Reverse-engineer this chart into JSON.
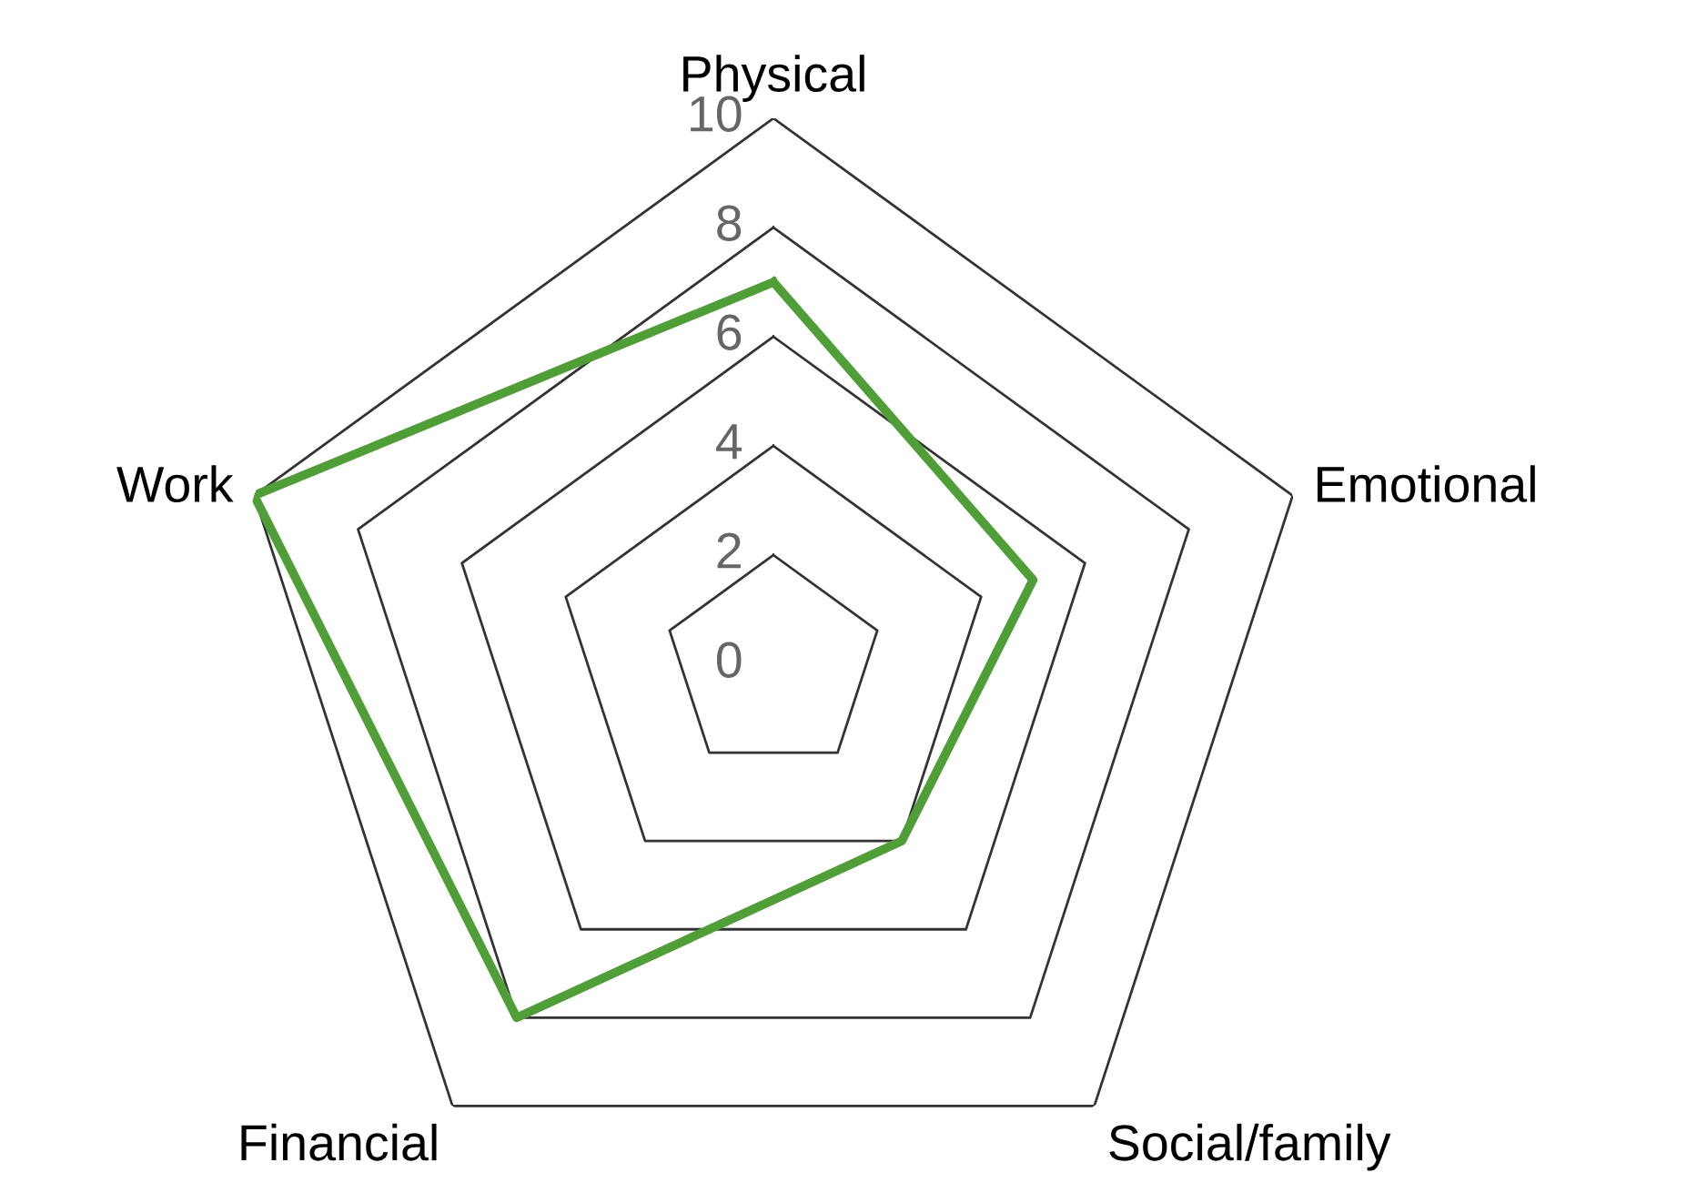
{
  "chart_data": {
    "type": "radar",
    "categories": [
      "Physical",
      "Emotional",
      "Social/family",
      "Financial",
      "Work"
    ],
    "series": [
      {
        "color": "#4f9e37",
        "values": [
          7,
          5,
          4,
          8,
          10
        ]
      }
    ],
    "ylim": [
      0,
      10
    ],
    "yticks": [
      0,
      2,
      4,
      6,
      8,
      10
    ],
    "grid": true,
    "line_style": "solid",
    "marker": "none"
  }
}
